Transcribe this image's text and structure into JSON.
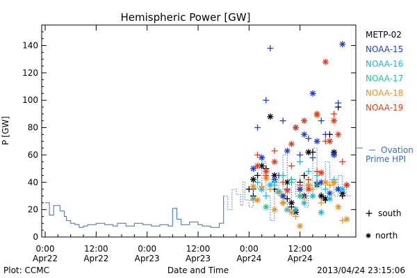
{
  "chart_data": {
    "type": "scatter",
    "title": "Hemispheric Power [GW]",
    "ylabel": "P [GW]",
    "xlabel": "Date and Time",
    "ylim": [
      0,
      155
    ],
    "yticks": [
      0,
      20,
      40,
      60,
      80,
      100,
      120,
      140
    ],
    "xlim_hours": [
      0,
      72
    ],
    "xticks": [
      {
        "hours": 0,
        "time": "0:00",
        "date": "Apr22"
      },
      {
        "hours": 12,
        "time": "12:00",
        "date": "Apr22"
      },
      {
        "hours": 24,
        "time": "0:00",
        "date": "Apr23"
      },
      {
        "hours": 36,
        "time": "12:00",
        "date": "Apr23"
      },
      {
        "hours": 48,
        "time": "0:00",
        "date": "Apr24"
      },
      {
        "hours": 60,
        "time": "12:00",
        "date": "Apr24"
      }
    ],
    "footer_left": "Plot: CCMC",
    "footer_right": "2013/04/24 23:15:06",
    "legend_satellites": [
      {
        "name": "METP-02",
        "color": "#000000"
      },
      {
        "name": "NOAA-15",
        "color": "#1f3fd0"
      },
      {
        "name": "NOAA-16",
        "color": "#17b6e8"
      },
      {
        "name": "NOAA-17",
        "color": "#19c890"
      },
      {
        "name": "NOAA-18",
        "color": "#f0901a"
      },
      {
        "name": "NOAA-19",
        "color": "#e03a1a"
      }
    ],
    "ovation_label_1": "Ovation",
    "ovation_label_2": "Prime HPI",
    "ovation_color": "#2f6fd0",
    "marker_south_label": "south",
    "marker_north_label": "north",
    "ovation_prime_hpi": [
      [
        0,
        25
      ],
      [
        1,
        25
      ],
      [
        1,
        16
      ],
      [
        2,
        16
      ],
      [
        2,
        23
      ],
      [
        3.5,
        23
      ],
      [
        3.5,
        19
      ],
      [
        4.5,
        19
      ],
      [
        4.5,
        15
      ],
      [
        5,
        15
      ],
      [
        5,
        12
      ],
      [
        6,
        12
      ],
      [
        6,
        10
      ],
      [
        7,
        10
      ],
      [
        7,
        9
      ],
      [
        8,
        9
      ],
      [
        8,
        7
      ],
      [
        9,
        7
      ],
      [
        9,
        8
      ],
      [
        10,
        8
      ],
      [
        10,
        9
      ],
      [
        12,
        9
      ],
      [
        12,
        10
      ],
      [
        14,
        10
      ],
      [
        14,
        9
      ],
      [
        16,
        9
      ],
      [
        16,
        8
      ],
      [
        17,
        8
      ],
      [
        17,
        10
      ],
      [
        19,
        10
      ],
      [
        19,
        8
      ],
      [
        21,
        8
      ],
      [
        21,
        10
      ],
      [
        23,
        10
      ],
      [
        23,
        9
      ],
      [
        25,
        9
      ],
      [
        25,
        8
      ],
      [
        27,
        8
      ],
      [
        27,
        9
      ],
      [
        29,
        9
      ],
      [
        29,
        8
      ],
      [
        30,
        8
      ],
      [
        30,
        21
      ],
      [
        31,
        21
      ],
      [
        31,
        13
      ],
      [
        32,
        13
      ],
      [
        32,
        9
      ],
      [
        34,
        9
      ],
      [
        34,
        11
      ],
      [
        36,
        11
      ],
      [
        36,
        9
      ],
      [
        37,
        9
      ],
      [
        37,
        8
      ],
      [
        39,
        8
      ],
      [
        39,
        7
      ],
      [
        41,
        7
      ],
      [
        41,
        10
      ],
      [
        42,
        10
      ],
      [
        42,
        30
      ],
      [
        43,
        30
      ],
      [
        43,
        20
      ],
      [
        44,
        20
      ],
      [
        44,
        35
      ],
      [
        45,
        35
      ],
      [
        45,
        31
      ],
      [
        46,
        31
      ],
      [
        46,
        23
      ],
      [
        46.5,
        23
      ],
      [
        46.5,
        40
      ],
      [
        47,
        40
      ],
      [
        47,
        27
      ],
      [
        48,
        27
      ],
      [
        48,
        22
      ],
      [
        49,
        22
      ],
      [
        49,
        45
      ],
      [
        50,
        45
      ],
      [
        50,
        35
      ],
      [
        51,
        35
      ],
      [
        51,
        55
      ],
      [
        52,
        55
      ],
      [
        52,
        30
      ],
      [
        53,
        30
      ],
      [
        53,
        12
      ],
      [
        54,
        12
      ],
      [
        54,
        42
      ],
      [
        55,
        42
      ],
      [
        55,
        30
      ],
      [
        56,
        30
      ],
      [
        56,
        60
      ],
      [
        57,
        60
      ],
      [
        57,
        20
      ],
      [
        58,
        20
      ],
      [
        58,
        42
      ],
      [
        59,
        42
      ],
      [
        59,
        30
      ],
      [
        60,
        30
      ],
      [
        60,
        45
      ],
      [
        61,
        45
      ],
      [
        61,
        22
      ],
      [
        62,
        22
      ],
      [
        62,
        38
      ],
      [
        63,
        38
      ],
      [
        63,
        65
      ],
      [
        64,
        65
      ],
      [
        64,
        40
      ],
      [
        65,
        40
      ],
      [
        65,
        25
      ],
      [
        66,
        25
      ],
      [
        66,
        55
      ],
      [
        67,
        55
      ],
      [
        67,
        40
      ],
      [
        68,
        40
      ],
      [
        68,
        30
      ],
      [
        69,
        30
      ],
      [
        69,
        45
      ],
      [
        70,
        45
      ],
      [
        70,
        35
      ],
      [
        71,
        35
      ],
      [
        71,
        30
      ],
      [
        72,
        30
      ]
    ],
    "series": [
      {
        "name": "METP-02",
        "south": [
          [
            48,
            35
          ],
          [
            49,
            30
          ],
          [
            50,
            45
          ],
          [
            52,
            50
          ],
          [
            54,
            35
          ],
          [
            56,
            25
          ],
          [
            57,
            28
          ],
          [
            58,
            22
          ],
          [
            59,
            20
          ],
          [
            60,
            40
          ],
          [
            61,
            45
          ],
          [
            62,
            38
          ],
          [
            63,
            62
          ],
          [
            65,
            30
          ],
          [
            66,
            27
          ],
          [
            67,
            75
          ],
          [
            68,
            40
          ],
          [
            69,
            95
          ],
          [
            70,
            30
          ],
          [
            71,
            38
          ]
        ],
        "north": [
          [
            49,
            42
          ],
          [
            51,
            52
          ],
          [
            53,
            88
          ],
          [
            54,
            45
          ],
          [
            55,
            33
          ],
          [
            56,
            30
          ],
          [
            57,
            40
          ],
          [
            58,
            25
          ],
          [
            59,
            18
          ],
          [
            60,
            35
          ],
          [
            61,
            30
          ],
          [
            62,
            62
          ],
          [
            64,
            38
          ],
          [
            65,
            30
          ],
          [
            66,
            28
          ],
          [
            68,
            62
          ],
          [
            69,
            35
          ],
          [
            70,
            32
          ]
        ]
      },
      {
        "name": "NOAA-15",
        "south": [
          [
            49,
            35
          ],
          [
            50,
            80
          ],
          [
            51,
            58
          ],
          [
            52,
            100
          ],
          [
            53,
            138
          ],
          [
            54,
            40
          ],
          [
            55,
            45
          ],
          [
            56,
            85
          ],
          [
            57,
            35
          ],
          [
            58,
            42
          ],
          [
            59,
            80
          ],
          [
            60,
            60
          ],
          [
            61,
            30
          ],
          [
            62,
            72
          ],
          [
            63,
            58
          ],
          [
            64,
            40
          ],
          [
            65,
            85
          ],
          [
            66,
            75
          ],
          [
            68,
            60
          ],
          [
            69,
            98
          ]
        ],
        "north": [
          [
            49,
            50
          ],
          [
            51,
            58
          ],
          [
            54,
            42
          ],
          [
            56,
            30
          ],
          [
            57,
            63
          ],
          [
            59,
            80
          ],
          [
            60,
            35
          ],
          [
            61,
            75
          ],
          [
            63,
            105
          ],
          [
            64,
            70
          ],
          [
            65,
            40
          ],
          [
            67,
            32
          ],
          [
            68,
            60
          ],
          [
            69,
            35
          ],
          [
            70,
            141
          ]
        ]
      },
      {
        "name": "NOAA-16",
        "south": [
          [
            50,
            40
          ],
          [
            52,
            30
          ],
          [
            54,
            38
          ],
          [
            56,
            45
          ],
          [
            58,
            40
          ],
          [
            60,
            55
          ],
          [
            62,
            48
          ],
          [
            64,
            45
          ],
          [
            66,
            35
          ],
          [
            68,
            42
          ]
        ],
        "north": [
          [
            49,
            28
          ],
          [
            51,
            35
          ],
          [
            53,
            38
          ],
          [
            55,
            33
          ],
          [
            57,
            20
          ],
          [
            59,
            20
          ],
          [
            61,
            25
          ],
          [
            63,
            30
          ],
          [
            65,
            18
          ],
          [
            67,
            28
          ],
          [
            70,
            35
          ]
        ]
      },
      {
        "name": "NOAA-17",
        "south": [
          [
            54,
            40
          ],
          [
            58,
            42
          ],
          [
            64,
            38
          ]
        ],
        "north": [
          [
            52,
            22
          ],
          [
            60,
            30
          ]
        ]
      },
      {
        "name": "NOAA-18",
        "south": [
          [
            49,
            27
          ],
          [
            51,
            37
          ],
          [
            53,
            35
          ],
          [
            55,
            32
          ],
          [
            57,
            20
          ],
          [
            59,
            15
          ],
          [
            61,
            28
          ],
          [
            63,
            35
          ],
          [
            65,
            25
          ],
          [
            67,
            38
          ],
          [
            70,
            12
          ]
        ],
        "north": [
          [
            49,
            37
          ],
          [
            50,
            27
          ],
          [
            52,
            43
          ],
          [
            54,
            20
          ],
          [
            56,
            25
          ],
          [
            58,
            18
          ],
          [
            60,
            8
          ],
          [
            62,
            38
          ],
          [
            64,
            89
          ],
          [
            66,
            40
          ],
          [
            68,
            40
          ],
          [
            69,
            22
          ],
          [
            71,
            13
          ]
        ]
      },
      {
        "name": "NOAA-19",
        "south": [
          [
            50,
            60
          ],
          [
            52,
            45
          ],
          [
            54,
            63
          ],
          [
            56,
            40
          ],
          [
            58,
            52
          ],
          [
            60,
            38
          ],
          [
            62,
            42
          ],
          [
            64,
            48
          ],
          [
            66,
            70
          ],
          [
            68,
            90
          ],
          [
            70,
            55
          ]
        ],
        "north": [
          [
            50,
            52
          ],
          [
            52,
            48
          ],
          [
            54,
            55
          ],
          [
            57,
            34
          ],
          [
            58,
            68
          ],
          [
            59,
            80
          ],
          [
            61,
            85
          ],
          [
            62,
            35
          ],
          [
            64,
            90
          ],
          [
            65,
            47
          ],
          [
            66,
            128
          ],
          [
            67,
            70
          ],
          [
            68,
            85
          ],
          [
            69,
            75
          ],
          [
            71,
            38
          ]
        ]
      }
    ]
  }
}
